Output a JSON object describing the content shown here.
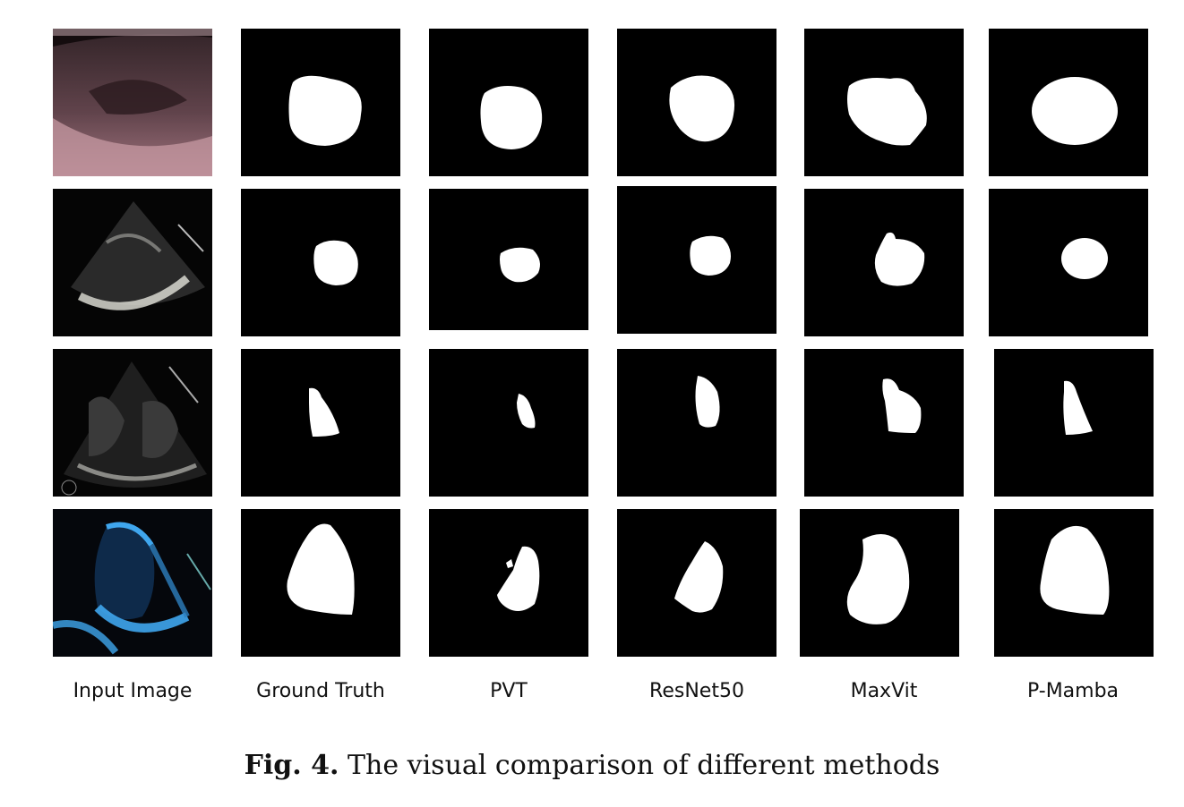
{
  "columns": [
    "Input Image",
    "Ground Truth",
    "PVT",
    "ResNet50",
    "MaxVit",
    "P-Mamba"
  ],
  "caption": {
    "label": "Fig. 4.",
    "text": " The visual comparison of different methods"
  },
  "colors": {
    "mask_background": "#000000",
    "mask_foreground": "#ffffff",
    "row1_input_tint": "#c79aa3",
    "row4_input_tint": "#3fa6ee"
  }
}
